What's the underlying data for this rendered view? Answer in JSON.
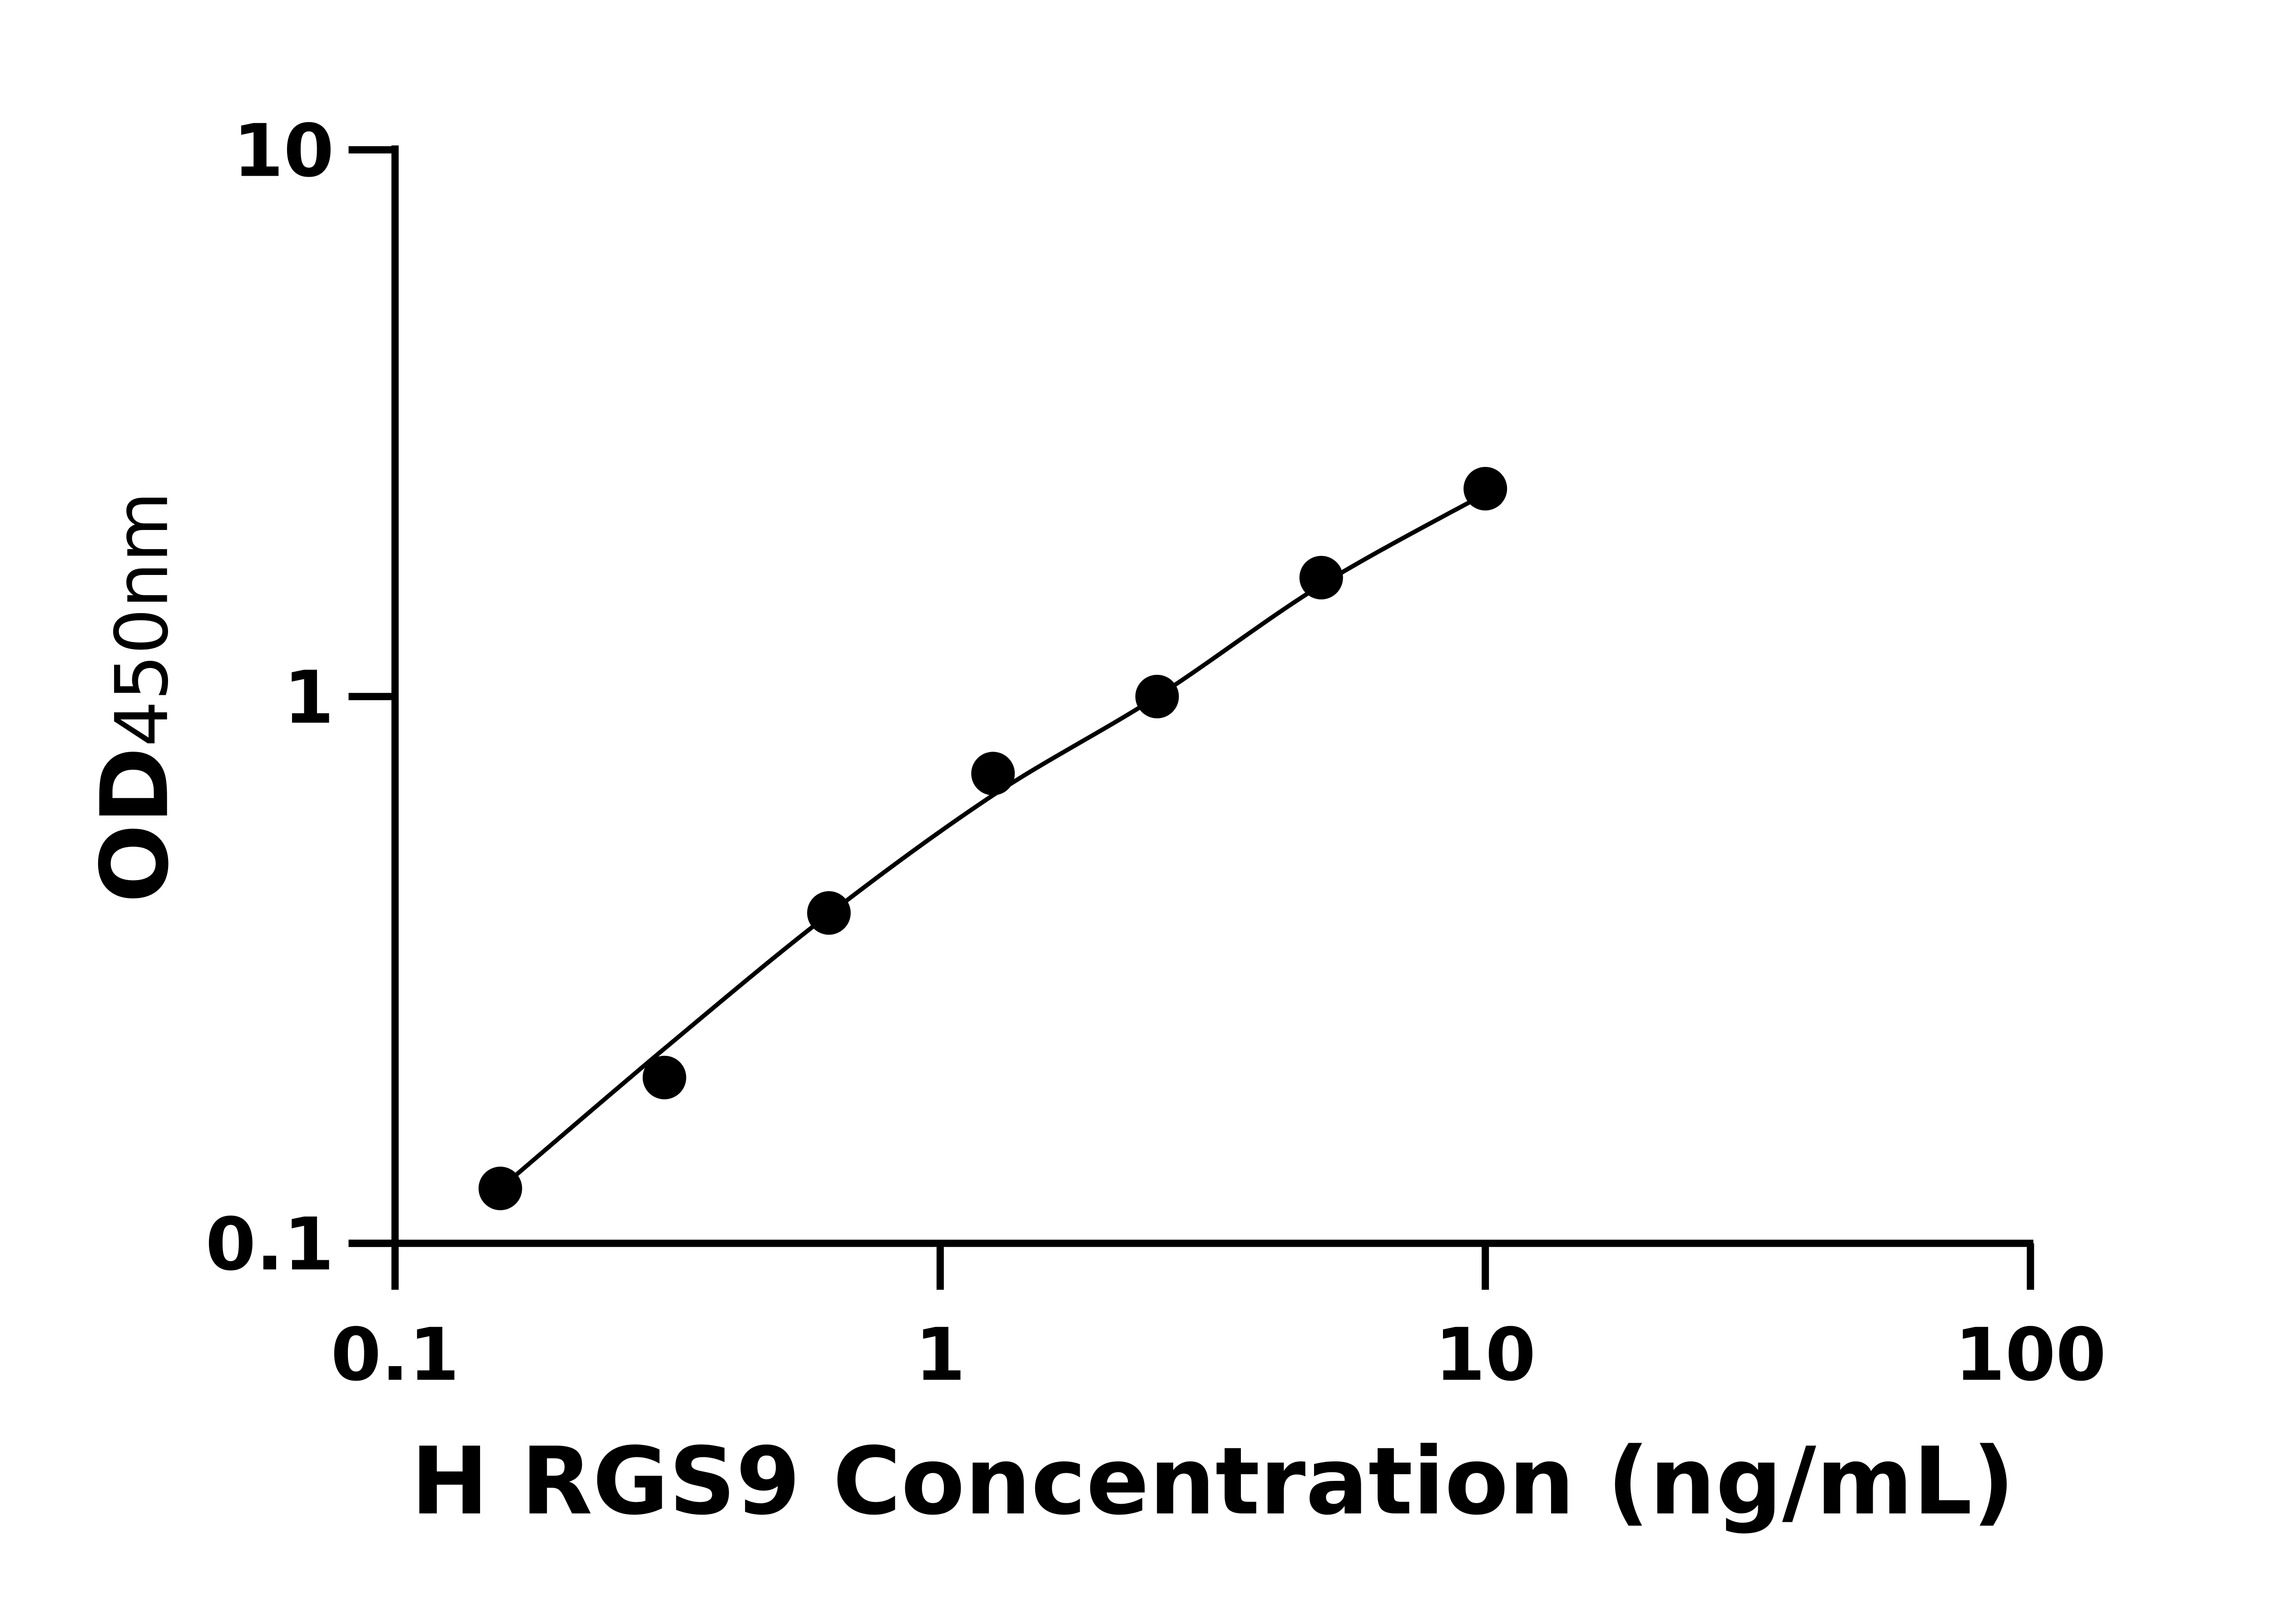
{
  "chart_data": {
    "type": "scatter",
    "title": "",
    "xlabel": "H RGS9 Concentration (ng/mL)",
    "ylabel_main": "OD",
    "ylabel_sub": "450nm",
    "x_scale": "log",
    "y_scale": "log",
    "xlim": [
      0.1,
      100
    ],
    "ylim": [
      0.1,
      10
    ],
    "x_ticks": [
      "0.1",
      "1",
      "10",
      "100"
    ],
    "y_ticks": [
      "0.1",
      "1",
      "10"
    ],
    "grid": false,
    "legend": "none",
    "series": [
      {
        "type": "scatter",
        "x": [
          0.156,
          0.312,
          0.625,
          1.25,
          2.5,
          5,
          10
        ],
        "y": [
          0.126,
          0.201,
          0.402,
          0.723,
          1.0,
          1.65,
          2.4
        ]
      },
      {
        "type": "line",
        "x": [
          0.156,
          0.312,
          0.625,
          1.25,
          2.5,
          5,
          10
        ],
        "y": [
          0.126,
          0.227,
          0.4,
          0.66,
          1.0,
          1.6,
          2.35
        ]
      }
    ],
    "colors": {
      "points": "#000000",
      "line": "#000000",
      "axes": "#000000"
    }
  }
}
